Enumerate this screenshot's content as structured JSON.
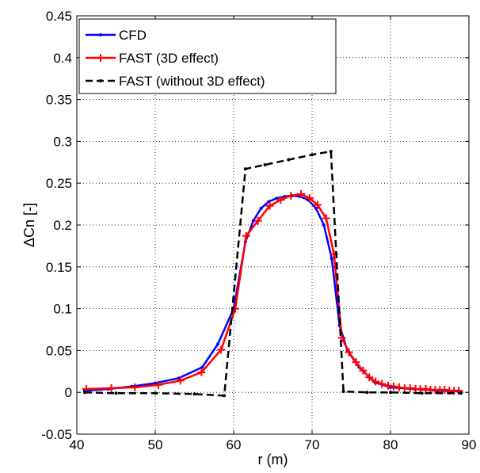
{
  "chart_data": {
    "type": "line",
    "title": "",
    "xlabel": "r (m)",
    "ylabel": "ΔCn [-]",
    "xlim": [
      40,
      90
    ],
    "ylim": [
      -0.05,
      0.45
    ],
    "xticks": [
      40,
      50,
      60,
      70,
      80,
      90
    ],
    "xtick_labels": [
      "40",
      "50",
      "60",
      "70",
      "80",
      "90"
    ],
    "yticks": [
      -0.05,
      0,
      0.05,
      0.1,
      0.15,
      0.2,
      0.25,
      0.3,
      0.35,
      0.4,
      0.45
    ],
    "ytick_labels": [
      "-0.05",
      "0",
      "0.05",
      "0.1",
      "0.15",
      "0.2",
      "0.25",
      "0.3",
      "0.35",
      "0.4",
      "0.45"
    ],
    "grid": true,
    "legend_position": "top-left",
    "series": [
      {
        "name": "CFD",
        "color": "#0000ff",
        "line_style": "solid",
        "marker": "point",
        "x": [
          41,
          44,
          47,
          50,
          53,
          56,
          58,
          60,
          61.5,
          62.5,
          63.5,
          64.5,
          65.5,
          66.5,
          67.5,
          68.5,
          69.5,
          70.5,
          71.5,
          72.5,
          73.5,
          74.5,
          76,
          78,
          80,
          83,
          86,
          89
        ],
        "y": [
          0.002,
          0.004,
          0.007,
          0.011,
          0.017,
          0.03,
          0.058,
          0.1,
          0.18,
          0.205,
          0.22,
          0.228,
          0.232,
          0.234,
          0.235,
          0.234,
          0.23,
          0.22,
          0.2,
          0.16,
          0.08,
          0.05,
          0.03,
          0.012,
          0.006,
          0.004,
          0.002,
          0.001
        ]
      },
      {
        "name": "FAST (3D effect)",
        "color": "#ff0000",
        "line_style": "solid",
        "marker": "plus",
        "x": [
          41.2,
          44.4,
          47.4,
          50.4,
          53.2,
          55.9,
          58.4,
          60.2,
          61.6,
          63.1,
          64.6,
          66.0,
          67.3,
          68.6,
          69.7,
          70.7,
          71.8,
          72.8,
          73.8,
          74.7,
          75.6,
          76.5,
          77.3,
          78.1,
          78.9,
          79.7,
          80.4,
          81.1,
          81.8,
          82.5,
          83.2,
          83.8,
          84.5,
          85.1,
          85.7,
          86.3,
          86.9,
          87.5,
          88.1,
          88.7
        ],
        "y": [
          0.004,
          0.005,
          0.006,
          0.009,
          0.014,
          0.024,
          0.051,
          0.1,
          0.187,
          0.205,
          0.223,
          0.23,
          0.235,
          0.237,
          0.232,
          0.224,
          0.208,
          0.165,
          0.065,
          0.048,
          0.036,
          0.026,
          0.018,
          0.013,
          0.01,
          0.008,
          0.007,
          0.006,
          0.005,
          0.005,
          0.004,
          0.004,
          0.004,
          0.003,
          0.003,
          0.003,
          0.003,
          0.002,
          0.002,
          0.002
        ]
      },
      {
        "name": "FAST (without 3D effect)",
        "color": "#000000",
        "line_style": "dashed",
        "marker": "point",
        "x": [
          41,
          45,
          50,
          55,
          58.8,
          61.5,
          64,
          67,
          70,
          72.4,
          74,
          77,
          80,
          84,
          89
        ],
        "y": [
          0.0,
          -0.001,
          -0.001,
          -0.002,
          -0.004,
          0.267,
          0.272,
          0.278,
          0.284,
          0.288,
          0.001,
          0.0,
          0.0,
          -0.001,
          -0.001
        ]
      }
    ]
  }
}
